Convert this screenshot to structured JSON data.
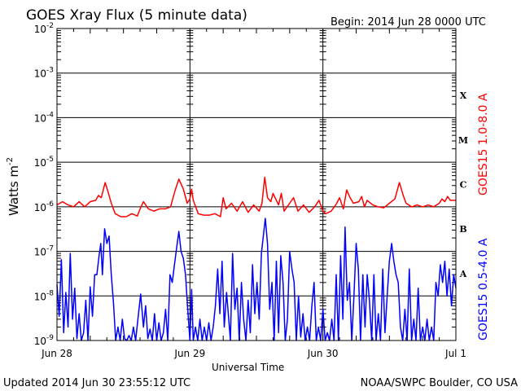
{
  "header": {
    "title": "GOES Xray Flux (5 minute data)",
    "begin": "Begin:  2014 Jun 28 0000 UTC"
  },
  "footer": {
    "updated": "Updated 2014 Jun 30 23:55:12 UTC",
    "credit": "NOAA/SWPC Boulder, CO USA"
  },
  "colors": {
    "long_channel": "#ff0000",
    "short_channel": "#0000ff",
    "axes": "#000000",
    "background": "#ffffff"
  },
  "chart_data": {
    "type": "line",
    "title": "GOES Xray Flux (5 minute data)",
    "xlabel": "Universal Time",
    "ylabel_base": "Watts m",
    "ylabel_exp": "-2",
    "yscale": "log",
    "ylim": [
      1e-09,
      0.01
    ],
    "xlim": [
      0,
      72
    ],
    "x_units": "hours since 2014 Jun 28 0000 UTC",
    "grid": "horizontal at each decade",
    "day_separators_hours": [
      24,
      48
    ],
    "x_tick_labels": [
      {
        "label": "Jun 28",
        "hour": 0
      },
      {
        "label": "Jun 29",
        "hour": 24
      },
      {
        "label": "Jun 30",
        "hour": 48
      },
      {
        "label": "Jul 1",
        "hour": 72
      }
    ],
    "y_tick_labels": [
      {
        "base": "10",
        "exp": "-2",
        "value": 0.01
      },
      {
        "base": "10",
        "exp": "-3",
        "value": 0.001
      },
      {
        "base": "10",
        "exp": "-4",
        "value": 0.0001
      },
      {
        "base": "10",
        "exp": "-5",
        "value": 1e-05
      },
      {
        "base": "10",
        "exp": "-6",
        "value": 1e-06
      },
      {
        "base": "10",
        "exp": "-7",
        "value": 1e-07
      },
      {
        "base": "10",
        "exp": "-8",
        "value": 1e-08
      },
      {
        "base": "10",
        "exp": "-9",
        "value": 1e-09
      }
    ],
    "flare_classes": [
      {
        "label": "X",
        "value": 0.000316
      },
      {
        "label": "M",
        "value": 3.16e-05
      },
      {
        "label": "C",
        "value": 3.16e-06
      },
      {
        "label": "B",
        "value": 3.16e-07
      },
      {
        "label": "A",
        "value": 3.16e-08
      }
    ],
    "series": [
      {
        "name": "GOES15 1.0-8.0 A",
        "color": "#ff0000",
        "points": [
          [
            0,
            1.1e-06
          ],
          [
            1,
            1.3e-06
          ],
          [
            2,
            1.1e-06
          ],
          [
            3,
            1e-06
          ],
          [
            4,
            1.3e-06
          ],
          [
            5,
            1e-06
          ],
          [
            6,
            1.3e-06
          ],
          [
            7,
            1.4e-06
          ],
          [
            7.5,
            1.8e-06
          ],
          [
            8,
            1.6e-06
          ],
          [
            8.7,
            3.5e-06
          ],
          [
            9.2,
            2.2e-06
          ],
          [
            9.8,
            1.2e-06
          ],
          [
            10.5,
            7e-07
          ],
          [
            11.5,
            6e-07
          ],
          [
            12.5,
            6e-07
          ],
          [
            13.5,
            7e-07
          ],
          [
            14.5,
            6.2e-07
          ],
          [
            15,
            9e-07
          ],
          [
            15.6,
            1.3e-06
          ],
          [
            16.5,
            9e-07
          ],
          [
            17.5,
            8e-07
          ],
          [
            18.5,
            9e-07
          ],
          [
            19.5,
            9e-07
          ],
          [
            20.5,
            1e-06
          ],
          [
            21.3,
            2.3e-06
          ],
          [
            22,
            4.2e-06
          ],
          [
            22.8,
            2.5e-06
          ],
          [
            23.5,
            1.2e-06
          ],
          [
            24,
            1.5e-06
          ],
          [
            24.3,
            2.5e-06
          ],
          [
            24.6,
            1.4e-06
          ],
          [
            25.5,
            7e-07
          ],
          [
            26.5,
            6.5e-07
          ],
          [
            27.5,
            6.5e-07
          ],
          [
            28.5,
            7e-07
          ],
          [
            29.5,
            6e-07
          ],
          [
            30,
            1.6e-06
          ],
          [
            30.5,
            9e-07
          ],
          [
            31.5,
            1.2e-06
          ],
          [
            32.5,
            8e-07
          ],
          [
            33.5,
            1.3e-06
          ],
          [
            34.5,
            7.5e-07
          ],
          [
            35.5,
            1.1e-06
          ],
          [
            36.5,
            8e-07
          ],
          [
            37,
            1.2e-06
          ],
          [
            37.5,
            4.6e-06
          ],
          [
            38,
            1.6e-06
          ],
          [
            38.6,
            1.3e-06
          ],
          [
            39,
            2e-06
          ],
          [
            40,
            1.1e-06
          ],
          [
            40.5,
            2e-06
          ],
          [
            41,
            8e-07
          ],
          [
            42,
            1.2e-06
          ],
          [
            42.7,
            1.6e-06
          ],
          [
            43.5,
            8e-07
          ],
          [
            44.5,
            1.1e-06
          ],
          [
            45.5,
            7.5e-07
          ],
          [
            46.5,
            1e-06
          ],
          [
            47.3,
            1.4e-06
          ],
          [
            48,
            8e-07
          ],
          [
            48.5,
            7e-07
          ],
          [
            49.5,
            8e-07
          ],
          [
            50.5,
            1.2e-06
          ],
          [
            51,
            1.6e-06
          ],
          [
            51.7,
            9e-07
          ],
          [
            52.3,
            2.4e-06
          ],
          [
            52.8,
            1.7e-06
          ],
          [
            53.5,
            1.2e-06
          ],
          [
            54.5,
            1.3e-06
          ],
          [
            55,
            1.7e-06
          ],
          [
            55.5,
            1e-06
          ],
          [
            56,
            1.4e-06
          ],
          [
            57,
            1.1e-06
          ],
          [
            58,
            1e-06
          ],
          [
            59,
            9.5e-07
          ],
          [
            60,
            1.2e-06
          ],
          [
            61,
            1.5e-06
          ],
          [
            61.8,
            3.5e-06
          ],
          [
            62.5,
            1.8e-06
          ],
          [
            63,
            1.2e-06
          ],
          [
            64,
            1e-06
          ],
          [
            65,
            1.1e-06
          ],
          [
            66,
            1e-06
          ],
          [
            67,
            1.1e-06
          ],
          [
            68,
            1e-06
          ],
          [
            69,
            1.2e-06
          ],
          [
            69.5,
            1.5e-06
          ],
          [
            70,
            1.3e-06
          ],
          [
            70.5,
            1.7e-06
          ],
          [
            71,
            1.4e-06
          ],
          [
            72,
            1.4e-06
          ]
        ]
      },
      {
        "name": "GOES15 0.5-4.0 A",
        "color": "#0000ff",
        "points": [
          [
            0,
            1.8e-08
          ],
          [
            0.4,
            3.5e-09
          ],
          [
            0.8,
            6.5e-08
          ],
          [
            1.2,
            1.5e-09
          ],
          [
            1.6,
            1.2e-08
          ],
          [
            2,
            2e-09
          ],
          [
            2.4,
            9e-08
          ],
          [
            2.8,
            3e-09
          ],
          [
            3.2,
            1.5e-08
          ],
          [
            3.6,
            1.1e-09
          ],
          [
            4,
            4e-09
          ],
          [
            4.4,
            1e-09
          ],
          [
            4.8,
            1.5e-09
          ],
          [
            5.2,
            8e-09
          ],
          [
            5.6,
            1e-09
          ],
          [
            6,
            1.6e-08
          ],
          [
            6.4,
            3.5e-09
          ],
          [
            6.8,
            3e-08
          ],
          [
            7.2,
            3e-08
          ],
          [
            7.6,
            8e-08
          ],
          [
            7.9,
            1.5e-07
          ],
          [
            8.2,
            3e-08
          ],
          [
            8.6,
            3.2e-07
          ],
          [
            9,
            1.5e-07
          ],
          [
            9.4,
            2.2e-07
          ],
          [
            9.8,
            3e-08
          ],
          [
            10.2,
            7e-09
          ],
          [
            10.6,
            1e-09
          ],
          [
            11,
            2e-09
          ],
          [
            11.4,
            1e-09
          ],
          [
            11.8,
            3e-09
          ],
          [
            12.2,
            1.1e-09
          ],
          [
            12.6,
            1e-09
          ],
          [
            13,
            1.3e-09
          ],
          [
            13.4,
            1e-09
          ],
          [
            13.8,
            2e-09
          ],
          [
            14.2,
            1e-09
          ],
          [
            14.6,
            3e-09
          ],
          [
            15.1,
            1.1e-08
          ],
          [
            15.6,
            2e-09
          ],
          [
            16,
            6e-09
          ],
          [
            16.4,
            1.1e-09
          ],
          [
            16.8,
            1.8e-09
          ],
          [
            17.2,
            1e-09
          ],
          [
            17.6,
            4e-09
          ],
          [
            18,
            1e-09
          ],
          [
            18.4,
            2.5e-09
          ],
          [
            18.8,
            1e-09
          ],
          [
            19.2,
            1.5e-09
          ],
          [
            19.6,
            5e-09
          ],
          [
            20,
            1e-09
          ],
          [
            20.4,
            3e-08
          ],
          [
            20.8,
            2e-08
          ],
          [
            21.2,
            5e-08
          ],
          [
            21.6,
            1.2e-07
          ],
          [
            22,
            2.8e-07
          ],
          [
            22.4,
            1e-07
          ],
          [
            22.8,
            7e-08
          ],
          [
            23.2,
            3e-08
          ],
          [
            23.6,
            5e-09
          ],
          [
            24,
            1e-09
          ],
          [
            24.3,
            1.4e-08
          ],
          [
            24.6,
            1e-09
          ],
          [
            25,
            2e-09
          ],
          [
            25.4,
            1e-09
          ],
          [
            25.8,
            3e-09
          ],
          [
            26.2,
            1e-09
          ],
          [
            26.6,
            2e-09
          ],
          [
            27,
            1e-09
          ],
          [
            27.4,
            2.5e-09
          ],
          [
            27.8,
            1e-09
          ],
          [
            28.2,
            2e-09
          ],
          [
            28.6,
            6e-09
          ],
          [
            29,
            4e-08
          ],
          [
            29.4,
            4e-09
          ],
          [
            29.8,
            6e-08
          ],
          [
            30.2,
            2e-09
          ],
          [
            30.6,
            1.2e-08
          ],
          [
            31,
            3e-09
          ],
          [
            31.3,
            1e-09
          ],
          [
            31.7,
            9e-08
          ],
          [
            32.1,
            5e-09
          ],
          [
            32.5,
            1.5e-08
          ],
          [
            32.9,
            1e-09
          ],
          [
            33.3,
            2e-08
          ],
          [
            33.7,
            3e-09
          ],
          [
            34.1,
            1e-09
          ],
          [
            34.5,
            8e-09
          ],
          [
            34.9,
            1.5e-09
          ],
          [
            35.3,
            5e-08
          ],
          [
            35.7,
            4e-09
          ],
          [
            36.1,
            2e-08
          ],
          [
            36.5,
            3e-09
          ],
          [
            36.9,
            9e-08
          ],
          [
            37.3,
            2.5e-07
          ],
          [
            37.6,
            5.5e-07
          ],
          [
            38,
            1.5e-07
          ],
          [
            38.4,
            5e-09
          ],
          [
            38.8,
            2e-08
          ],
          [
            39.2,
            1e-09
          ],
          [
            39.6,
            6e-08
          ],
          [
            40,
            1.5e-09
          ],
          [
            40.4,
            8e-08
          ],
          [
            40.8,
            2e-08
          ],
          [
            41.2,
            1e-09
          ],
          [
            41.6,
            3e-09
          ],
          [
            42,
            1e-07
          ],
          [
            42.4,
            4e-08
          ],
          [
            42.8,
            2e-08
          ],
          [
            43.2,
            1e-09
          ],
          [
            43.6,
            1e-08
          ],
          [
            44,
            1.2e-09
          ],
          [
            44.4,
            4e-09
          ],
          [
            44.8,
            1e-09
          ],
          [
            45.2,
            2e-09
          ],
          [
            45.6,
            1e-09
          ],
          [
            46,
            6e-09
          ],
          [
            46.4,
            2e-08
          ],
          [
            46.8,
            1e-09
          ],
          [
            47.2,
            2e-09
          ],
          [
            47.6,
            1e-09
          ],
          [
            48,
            5e-09
          ],
          [
            48.4,
            1e-09
          ],
          [
            48.8,
            1.5e-09
          ],
          [
            49.2,
            1e-09
          ],
          [
            49.6,
            3e-09
          ],
          [
            50,
            1e-09
          ],
          [
            50.4,
            3e-08
          ],
          [
            50.8,
            1e-09
          ],
          [
            51.2,
            8e-08
          ],
          [
            51.6,
            3e-09
          ],
          [
            52,
            3.5e-07
          ],
          [
            52.4,
            8e-09
          ],
          [
            52.8,
            2e-08
          ],
          [
            53.2,
            1e-09
          ],
          [
            53.6,
            1e-08
          ],
          [
            54,
            1.5e-07
          ],
          [
            54.4,
            4e-08
          ],
          [
            54.8,
            1e-09
          ],
          [
            55.2,
            3e-08
          ],
          [
            55.6,
            2e-09
          ],
          [
            56,
            3e-08
          ],
          [
            56.4,
            8e-09
          ],
          [
            56.8,
            1e-09
          ],
          [
            57.2,
            3e-08
          ],
          [
            57.6,
            1e-09
          ],
          [
            58,
            4e-09
          ],
          [
            58.4,
            1e-09
          ],
          [
            58.8,
            4e-08
          ],
          [
            59.2,
            1.5e-09
          ],
          [
            59.6,
            1e-08
          ],
          [
            60,
            6e-08
          ],
          [
            60.4,
            1.5e-07
          ],
          [
            60.8,
            6e-08
          ],
          [
            61.2,
            3e-08
          ],
          [
            61.6,
            2e-08
          ],
          [
            62,
            2e-09
          ],
          [
            62.4,
            1e-09
          ],
          [
            62.8,
            5e-09
          ],
          [
            63.2,
            1e-09
          ],
          [
            63.6,
            4e-08
          ],
          [
            64,
            1e-09
          ],
          [
            64.4,
            3e-09
          ],
          [
            64.8,
            1e-09
          ],
          [
            65.2,
            1.5e-08
          ],
          [
            65.6,
            1e-09
          ],
          [
            66,
            2e-09
          ],
          [
            66.4,
            1e-09
          ],
          [
            66.8,
            3e-09
          ],
          [
            67.2,
            1e-09
          ],
          [
            67.6,
            2e-09
          ],
          [
            68,
            1e-09
          ],
          [
            68.4,
            2e-08
          ],
          [
            68.8,
            1e-08
          ],
          [
            69.2,
            5e-08
          ],
          [
            69.6,
            2e-08
          ],
          [
            70,
            6e-08
          ],
          [
            70.4,
            1e-08
          ],
          [
            70.8,
            4e-08
          ],
          [
            71.2,
            6e-09
          ],
          [
            71.6,
            3e-08
          ],
          [
            72,
            1.5e-08
          ]
        ]
      }
    ]
  }
}
